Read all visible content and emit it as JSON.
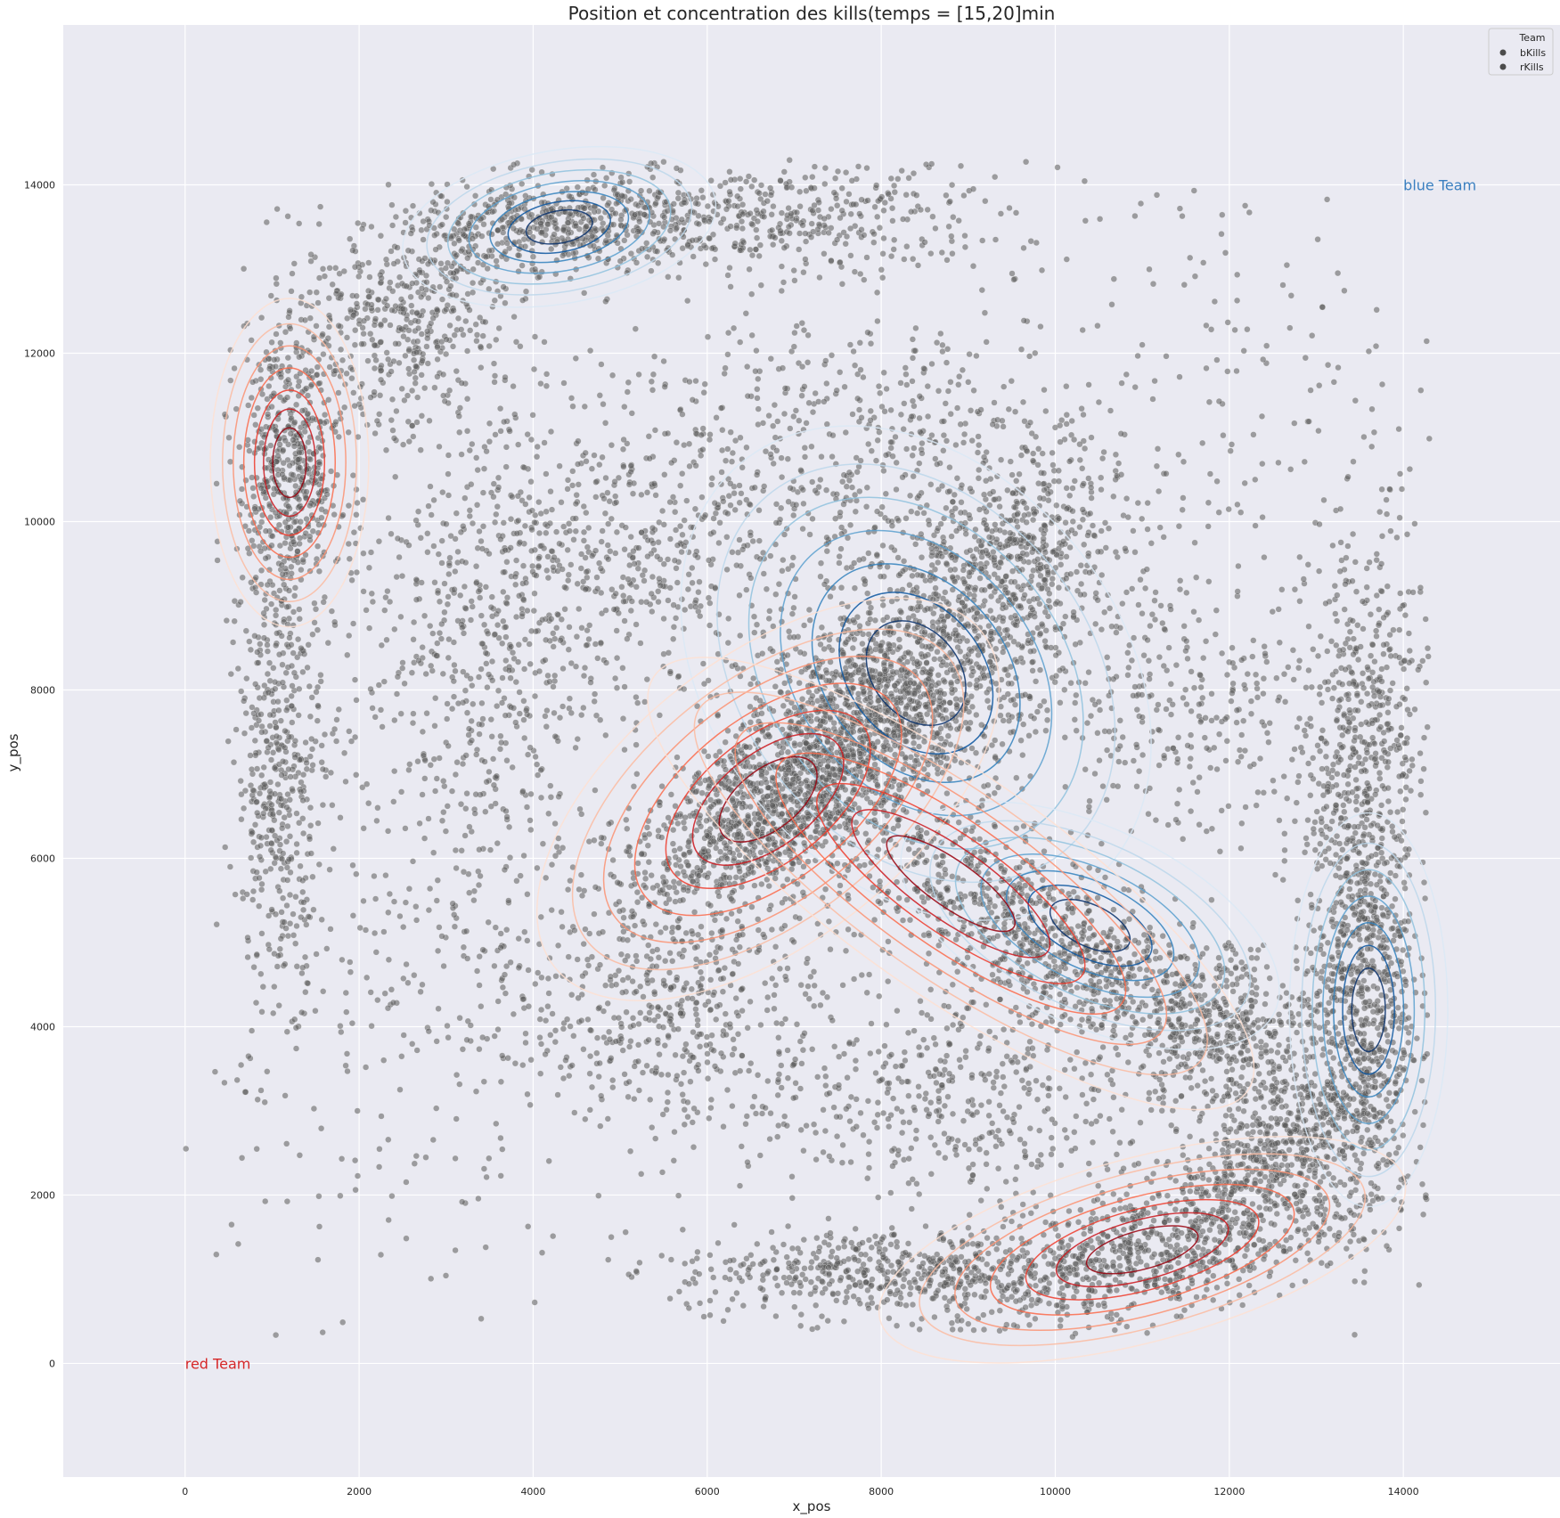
{
  "chart_data": {
    "type": "scatter",
    "title": "Position et concentration des kills(temps = [15,20]min",
    "xlabel": "x_pos",
    "ylabel": "y_pos",
    "xlim": [
      -1400,
      15800
    ],
    "ylim": [
      -1350,
      15900
    ],
    "xticks": [
      0,
      2000,
      4000,
      6000,
      8000,
      10000,
      12000,
      14000
    ],
    "yticks": [
      0,
      2000,
      4000,
      6000,
      8000,
      10000,
      12000,
      14000
    ],
    "grid": true,
    "legend": {
      "placement": "top-right",
      "title": "Team",
      "entries": [
        {
          "label": "bKills",
          "color": "#4c4c4c"
        },
        {
          "label": "rKills",
          "color": "#4c4c4c"
        }
      ]
    },
    "annotations": [
      {
        "text": "blue Team",
        "x": 14000,
        "y": 14000,
        "color": "#3a7fc0"
      },
      {
        "text": "red Team",
        "x": 0,
        "y": 0,
        "color": "#d62728"
      }
    ],
    "background_color": "#eaeaf2",
    "point_color": "#5a5a5a",
    "kde_series": [
      {
        "name": "bKills",
        "colors": [
          "#dbe9f6",
          "#bcd7eb",
          "#8fc2de",
          "#5aa0cf",
          "#3181bd",
          "#0c56a0",
          "#08306b"
        ],
        "peaks": [
          {
            "x": 8400,
            "y": 8200,
            "sx": 900,
            "sy": 1250,
            "rot": 40
          },
          {
            "x": 4300,
            "y": 13500,
            "sx": 700,
            "sy": 350,
            "rot": 10
          },
          {
            "x": 13600,
            "y": 4200,
            "sx": 350,
            "sy": 900,
            "rot": 0
          },
          {
            "x": 10400,
            "y": 5200,
            "sx": 900,
            "sy": 450,
            "rot": -25
          }
        ]
      },
      {
        "name": "rKills",
        "colors": [
          "#fee0d2",
          "#fcbba1",
          "#fc9272",
          "#fb6a4a",
          "#ef3b2c",
          "#cb181d",
          "#99000d"
        ],
        "peaks": [
          {
            "x": 6700,
            "y": 6700,
            "sx": 1200,
            "sy": 650,
            "rot": 38
          },
          {
            "x": 1200,
            "y": 10700,
            "sx": 350,
            "sy": 750,
            "rot": 0
          },
          {
            "x": 11000,
            "y": 1350,
            "sx": 1200,
            "sy": 420,
            "rot": 15
          },
          {
            "x": 8800,
            "y": 5700,
            "sx": 1600,
            "sy": 500,
            "rot": -35
          }
        ]
      }
    ],
    "point_clusters": [
      {
        "x": 8200,
        "y": 7900,
        "sx": 1000,
        "sy": 650,
        "rot": 42,
        "n": 1400
      },
      {
        "x": 6700,
        "y": 6600,
        "sx": 900,
        "sy": 450,
        "rot": 38,
        "n": 1100
      },
      {
        "x": 4200,
        "y": 13500,
        "sx": 900,
        "sy": 300,
        "rot": 5,
        "n": 500
      },
      {
        "x": 1200,
        "y": 10600,
        "sx": 300,
        "sy": 900,
        "rot": 0,
        "n": 550
      },
      {
        "x": 1100,
        "y": 7000,
        "sx": 250,
        "sy": 1300,
        "rot": 0,
        "n": 450
      },
      {
        "x": 2500,
        "y": 12300,
        "sx": 700,
        "sy": 600,
        "rot": 20,
        "n": 450
      },
      {
        "x": 6800,
        "y": 13600,
        "sx": 1300,
        "sy": 350,
        "rot": 0,
        "n": 450
      },
      {
        "x": 10000,
        "y": 5000,
        "sx": 1400,
        "sy": 400,
        "rot": -30,
        "n": 900
      },
      {
        "x": 11200,
        "y": 1400,
        "sx": 1400,
        "sy": 400,
        "rot": 15,
        "n": 900
      },
      {
        "x": 8000,
        "y": 1100,
        "sx": 1200,
        "sy": 250,
        "rot": 0,
        "n": 500
      },
      {
        "x": 13500,
        "y": 4500,
        "sx": 300,
        "sy": 1400,
        "rot": 0,
        "n": 800
      },
      {
        "x": 12600,
        "y": 2600,
        "sx": 700,
        "sy": 350,
        "rot": 40,
        "n": 450
      },
      {
        "x": 13600,
        "y": 7500,
        "sx": 350,
        "sy": 1300,
        "rot": 0,
        "n": 450
      },
      {
        "x": 12000,
        "y": 4000,
        "sx": 500,
        "sy": 500,
        "rot": 0,
        "n": 350
      },
      {
        "x": 9600,
        "y": 9600,
        "sx": 700,
        "sy": 500,
        "rot": 45,
        "n": 450
      },
      {
        "x": 5000,
        "y": 9500,
        "sx": 1200,
        "sy": 900,
        "rot": 0,
        "n": 600
      },
      {
        "x": 7800,
        "y": 10800,
        "sx": 1400,
        "sy": 900,
        "rot": 0,
        "n": 550
      },
      {
        "x": 5800,
        "y": 4200,
        "sx": 800,
        "sy": 800,
        "rot": 0,
        "n": 400
      },
      {
        "x": 9000,
        "y": 3300,
        "sx": 1200,
        "sy": 700,
        "rot": 0,
        "n": 500
      },
      {
        "x": 3200,
        "y": 8200,
        "sx": 700,
        "sy": 1300,
        "rot": 0,
        "n": 400
      },
      {
        "x": 11500,
        "y": 7800,
        "sx": 1000,
        "sy": 900,
        "rot": 0,
        "n": 350
      },
      {
        "x": 11800,
        "y": 11500,
        "sx": 1400,
        "sy": 1400,
        "rot": 0,
        "n": 160
      },
      {
        "x": 4000,
        "y": 5000,
        "sx": 1100,
        "sy": 1200,
        "rot": 0,
        "n": 300
      },
      {
        "x": 1800,
        "y": 3300,
        "sx": 1000,
        "sy": 1500,
        "rot": 0,
        "n": 110
      }
    ]
  }
}
